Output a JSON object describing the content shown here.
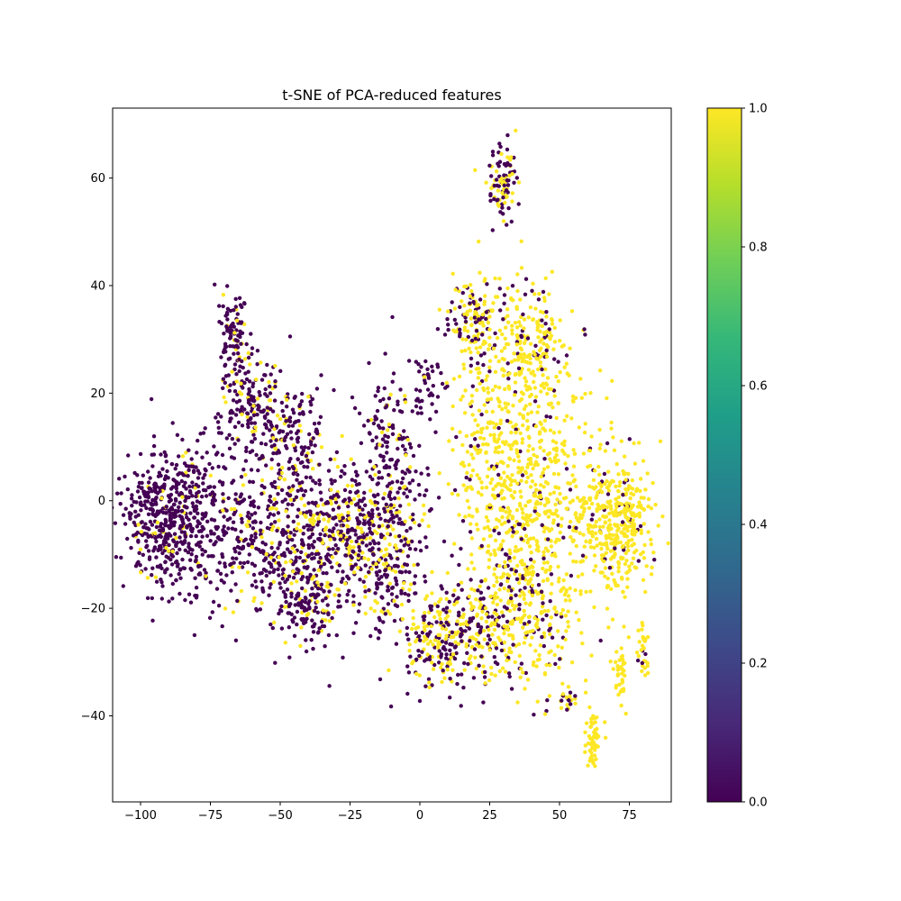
{
  "chart_data": {
    "type": "scatter",
    "title": "t-SNE of PCA-reduced features",
    "xlabel": "",
    "ylabel": "",
    "xlim": [
      -110,
      90
    ],
    "ylim": [
      -56,
      73
    ],
    "x_ticks": [
      {
        "value": -100,
        "label": "−100"
      },
      {
        "value": -75,
        "label": "−75"
      },
      {
        "value": -50,
        "label": "−50"
      },
      {
        "value": -25,
        "label": "−25"
      },
      {
        "value": 0,
        "label": "0"
      },
      {
        "value": 25,
        "label": "25"
      },
      {
        "value": 50,
        "label": "50"
      },
      {
        "value": 75,
        "label": "75"
      }
    ],
    "y_ticks": [
      {
        "value": -40,
        "label": "−40"
      },
      {
        "value": -20,
        "label": "−20"
      },
      {
        "value": 0,
        "label": "0"
      },
      {
        "value": 20,
        "label": "20"
      },
      {
        "value": 40,
        "label": "40"
      },
      {
        "value": 60,
        "label": "60"
      }
    ],
    "grid": false,
    "colormap": "viridis",
    "colorbar": {
      "range": [
        0,
        1
      ],
      "ticks": [
        {
          "value": 0.0,
          "label": "0.0"
        },
        {
          "value": 0.2,
          "label": "0.2"
        },
        {
          "value": 0.4,
          "label": "0.4"
        },
        {
          "value": 0.6,
          "label": "0.6"
        },
        {
          "value": 0.8,
          "label": "0.8"
        },
        {
          "value": 1.0,
          "label": "1.0"
        }
      ],
      "stops": [
        "#440154",
        "#482878",
        "#3e4989",
        "#31688e",
        "#26828e",
        "#1f9e89",
        "#35b779",
        "#6ece58",
        "#b5de2b",
        "#fde725"
      ]
    },
    "class_colors": {
      "0": "#440154",
      "1": "#fde725"
    },
    "clusters": [
      {
        "cx": -93,
        "cy": -4,
        "sx": 7,
        "sy": 6,
        "n": 320,
        "p1": 0.05
      },
      {
        "cx": -80,
        "cy": -3,
        "sx": 8,
        "sy": 8,
        "n": 300,
        "p1": 0.1
      },
      {
        "cx": -67,
        "cy": 31,
        "sx": 2.5,
        "sy": 4,
        "n": 90,
        "p1": 0.15
      },
      {
        "cx": -60,
        "cy": 18,
        "sx": 6,
        "sy": 5,
        "n": 180,
        "p1": 0.2
      },
      {
        "cx": -45,
        "cy": 10,
        "sx": 7,
        "sy": 5,
        "n": 160,
        "p1": 0.2
      },
      {
        "cx": -50,
        "cy": -8,
        "sx": 12,
        "sy": 7,
        "n": 420,
        "p1": 0.2
      },
      {
        "cx": -40,
        "cy": -20,
        "sx": 5,
        "sy": 3.5,
        "n": 110,
        "p1": 0.15
      },
      {
        "cx": -25,
        "cy": -6,
        "sx": 8,
        "sy": 7,
        "n": 320,
        "p1": 0.4
      },
      {
        "cx": -10,
        "cy": -8,
        "sx": 7,
        "sy": 8,
        "n": 240,
        "p1": 0.3
      },
      {
        "cx": -10,
        "cy": 10,
        "sx": 5,
        "sy": 6,
        "n": 120,
        "p1": 0.1
      },
      {
        "cx": 2,
        "cy": 22,
        "sx": 4,
        "sy": 3,
        "n": 40,
        "p1": 0.1
      },
      {
        "cx": 12,
        "cy": -25,
        "sx": 10,
        "sy": 5,
        "n": 300,
        "p1": 0.45
      },
      {
        "cx": 28,
        "cy": 12,
        "sx": 9,
        "sy": 14,
        "n": 400,
        "p1": 0.9
      },
      {
        "cx": 45,
        "cy": 0,
        "sx": 12,
        "sy": 14,
        "n": 500,
        "p1": 0.9
      },
      {
        "cx": 35,
        "cy": -20,
        "sx": 9,
        "sy": 7,
        "n": 250,
        "p1": 0.7
      },
      {
        "cx": 20,
        "cy": 34,
        "sx": 5,
        "sy": 4,
        "n": 120,
        "p1": 0.5
      },
      {
        "cx": 40,
        "cy": 30,
        "sx": 6,
        "sy": 5,
        "n": 150,
        "p1": 0.8
      },
      {
        "cx": 70,
        "cy": -5,
        "sx": 6,
        "sy": 6,
        "n": 260,
        "p1": 0.9
      },
      {
        "cx": 75,
        "cy": -2,
        "sx": 4,
        "sy": 5,
        "n": 90,
        "p1": 0.95
      },
      {
        "cx": 30,
        "cy": 60,
        "sx": 2.5,
        "sy": 4,
        "n": 100,
        "p1": 0.5
      },
      {
        "cx": 62,
        "cy": -45,
        "sx": 1.2,
        "sy": 3,
        "n": 60,
        "p1": 1.0
      },
      {
        "cx": 72,
        "cy": -32,
        "sx": 1.2,
        "sy": 3,
        "n": 40,
        "p1": 1.0
      },
      {
        "cx": 80,
        "cy": -28,
        "sx": 1,
        "sy": 3,
        "n": 30,
        "p1": 0.95
      },
      {
        "cx": 53,
        "cy": -37,
        "sx": 2,
        "sy": 1.2,
        "n": 20,
        "p1": 0.7
      }
    ]
  }
}
